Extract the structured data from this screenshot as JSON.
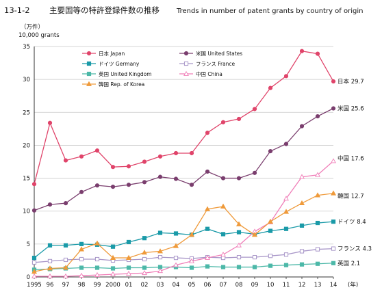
{
  "chart_data": {
    "type": "line",
    "title": "13-1-2　主要国等の特許登録件数の推移　Trends in number of patent grants by country of origin",
    "title_parts": {
      "number": "13-1-2",
      "jp": "主要国等の特許登録件数の推移",
      "en": "Trends in number of patent grants by country of origin"
    },
    "y_unit_jp": "（万件）",
    "y_unit_en": "10,000 grants",
    "x_unit": "(年)",
    "ylim": [
      0,
      35
    ],
    "y_ticks": [
      "0",
      "5",
      "10",
      "15",
      "20",
      "25",
      "30",
      "35"
    ],
    "x_ticks": [
      "1995",
      "96",
      "97",
      "98",
      "99",
      "2000",
      "01",
      "02",
      "03",
      "04",
      "05",
      "06",
      "07",
      "08",
      "09",
      "10",
      "11",
      "12",
      "13",
      "14"
    ],
    "grid": "horizontal",
    "legend_position": "top-left",
    "series": [
      {
        "name": "日本 Japan",
        "short": "日本",
        "color": "#e0446a",
        "marker": "circle",
        "end_label": "日本 29.7",
        "values": [
          14.1,
          23.4,
          17.7,
          18.3,
          19.2,
          16.7,
          16.8,
          17.5,
          18.3,
          18.8,
          18.8,
          21.9,
          23.5,
          24.0,
          25.5,
          28.7,
          30.5,
          34.3,
          33.9,
          29.7
        ]
      },
      {
        "name": "米国 United States",
        "short": "米国",
        "color": "#7a3e6e",
        "marker": "circle",
        "end_label": "米国 25.6",
        "values": [
          10.1,
          11.0,
          11.2,
          12.9,
          13.9,
          13.7,
          14.0,
          14.4,
          15.2,
          14.9,
          14.0,
          16.0,
          15.0,
          15.0,
          15.8,
          19.1,
          20.2,
          22.9,
          24.4,
          25.6
        ]
      },
      {
        "name": "ドイツ Germany",
        "short": "ドイツ",
        "color": "#1a9aa8",
        "marker": "square",
        "end_label": "ドイツ 8.4",
        "values": [
          2.9,
          4.8,
          4.8,
          5.0,
          4.9,
          4.6,
          5.3,
          5.9,
          6.7,
          6.6,
          6.4,
          7.3,
          6.5,
          6.8,
          6.5,
          7.0,
          7.3,
          7.8,
          8.2,
          8.4
        ]
      },
      {
        "name": "フランス France",
        "short": "フランス",
        "color": "#a896c8",
        "marker": "square",
        "end_label": "フランス 4.3",
        "values": [
          2.2,
          2.4,
          2.6,
          2.7,
          2.7,
          2.5,
          2.6,
          2.7,
          3.0,
          2.9,
          2.8,
          3.0,
          2.9,
          3.0,
          3.0,
          3.2,
          3.4,
          3.9,
          4.2,
          4.3
        ]
      },
      {
        "name": "英国 United Kingdom",
        "short": "英国",
        "color": "#4cb8a8",
        "marker": "square",
        "end_label": "英国 2.1",
        "values": [
          1.1,
          1.2,
          1.3,
          1.4,
          1.4,
          1.3,
          1.4,
          1.4,
          1.5,
          1.5,
          1.4,
          1.6,
          1.5,
          1.5,
          1.5,
          1.7,
          1.8,
          1.9,
          2.0,
          2.1
        ]
      },
      {
        "name": "中国 China",
        "short": "中国",
        "color": "#f07eb8",
        "marker": "triangle-open",
        "end_label": "中国 17.6",
        "values": [
          0.1,
          0.1,
          0.1,
          0.2,
          0.3,
          0.4,
          0.5,
          0.6,
          0.9,
          1.8,
          2.4,
          2.9,
          3.4,
          4.8,
          6.9,
          8.3,
          11.9,
          15.2,
          15.5,
          17.6
        ]
      },
      {
        "name": "韓国 Rep. of Korea",
        "short": "韓国",
        "color": "#ef9a3a",
        "marker": "triangle",
        "end_label": "韓国 12.7",
        "values": [
          0.8,
          1.3,
          1.4,
          4.2,
          5.1,
          2.9,
          2.9,
          3.7,
          3.9,
          4.7,
          6.4,
          10.3,
          10.7,
          8.0,
          6.4,
          8.4,
          9.9,
          11.2,
          12.4,
          12.7
        ]
      }
    ]
  }
}
